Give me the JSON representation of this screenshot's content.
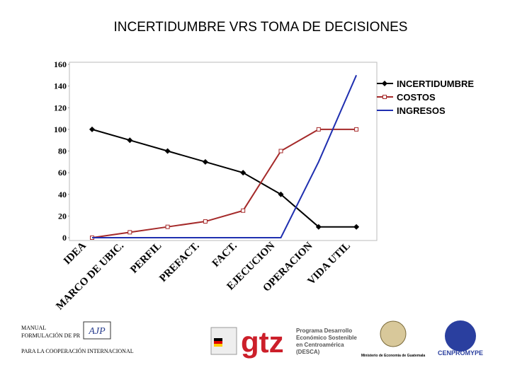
{
  "chart_data": {
    "type": "line",
    "title": "INCERTIDUMBRE VRS TOMA DE DECISIONES",
    "categories": [
      "IDEA",
      "MARCO DE UBIC.",
      "PERFIL",
      "PREFACT.",
      "FACT.",
      "EJECUCION",
      "OPERACION",
      "VIDA UTIL"
    ],
    "series": [
      {
        "name": "INCERTIDUMBRE",
        "color": "#000000",
        "marker": "diamond",
        "values": [
          100,
          90,
          80,
          70,
          60,
          40,
          10,
          10
        ]
      },
      {
        "name": "COSTOS",
        "color": "#a52a2a",
        "marker": "square",
        "values": [
          0,
          5,
          10,
          15,
          25,
          80,
          100,
          100
        ]
      },
      {
        "name": "INGRESOS",
        "color": "#1f2fb0",
        "values": [
          0,
          0,
          0,
          0,
          0,
          0,
          70,
          150
        ]
      }
    ],
    "ylim": [
      0,
      160
    ],
    "yticks": [
      0,
      20,
      40,
      60,
      80,
      100,
      120,
      140,
      160
    ],
    "legend": "right"
  },
  "footer": {
    "manual": "MANUAL",
    "formulacion": "FORMULACIÓN DE PR",
    "cooperacion": "PARA LA COOPERACIÓN INTERNACIONAL",
    "ajp": "AJP",
    "gtz": "gtz",
    "desca": [
      "Programa Desarrollo",
      "Económico Sostenible",
      "en Centroamérica",
      "(DESCA)"
    ],
    "ministerio": "Ministerio de Economía de Guatemala",
    "cenpromype": "CENPROMYPE"
  }
}
